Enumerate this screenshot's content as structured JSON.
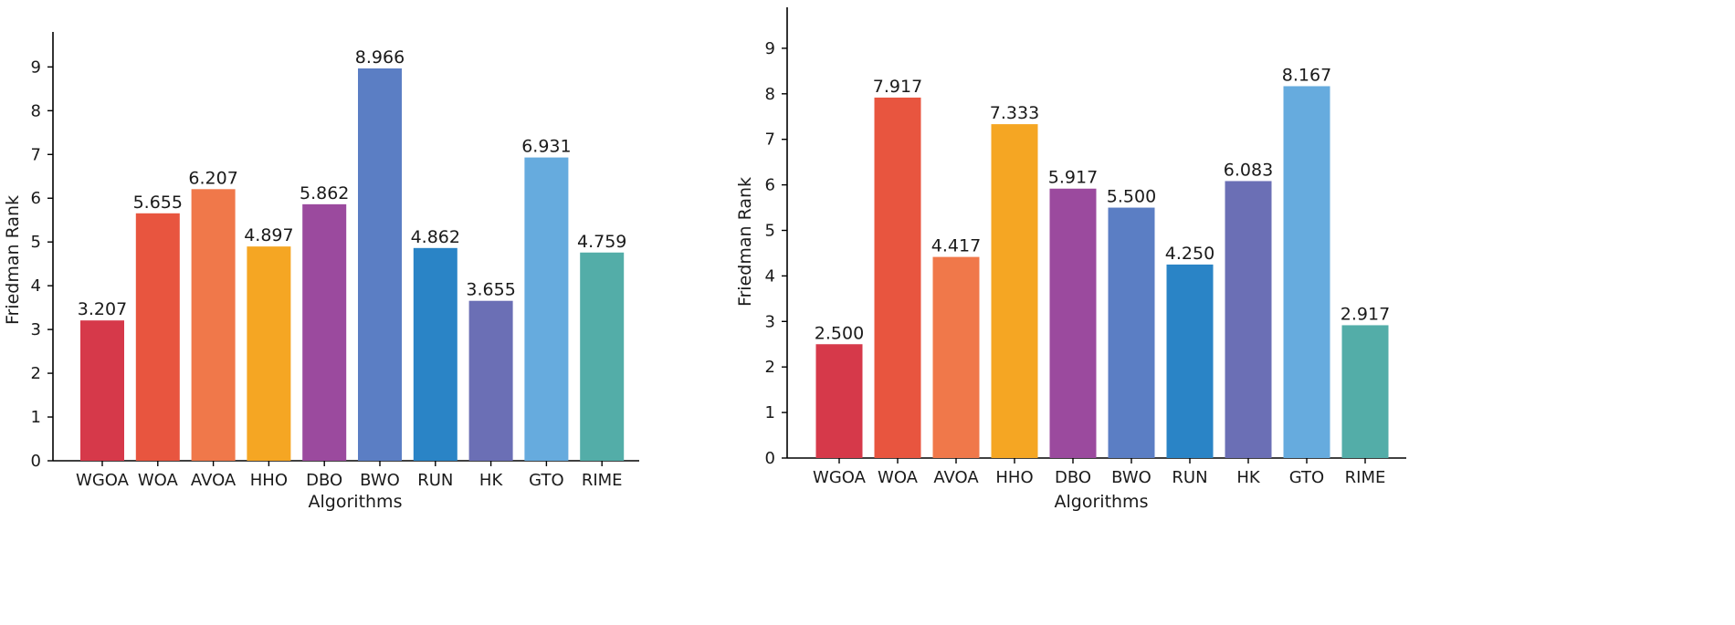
{
  "chart_data": [
    {
      "type": "bar",
      "xlabel": "Algorithms",
      "ylabel": "Friedman Rank",
      "ylim": [
        0,
        9.8
      ],
      "yticks": [
        0,
        1,
        2,
        3,
        4,
        5,
        6,
        7,
        8,
        9
      ],
      "grid": false,
      "categories": [
        "WGOA",
        "WOA",
        "AVOA",
        "HHO",
        "DBO",
        "BWO",
        "RUN",
        "HK",
        "GTO",
        "RIME"
      ],
      "values": [
        3.207,
        5.655,
        6.207,
        4.897,
        5.862,
        8.966,
        4.862,
        3.655,
        6.931,
        4.759
      ],
      "value_labels": [
        "3.207",
        "5.655",
        "6.207",
        "4.897",
        "5.862",
        "8.966",
        "4.862",
        "3.655",
        "6.931",
        "4.759"
      ],
      "colors": [
        "#d6394a",
        "#e8553f",
        "#f0784a",
        "#f5a623",
        "#9b4a9e",
        "#5b7ec4",
        "#2a84c6",
        "#6b6fb5",
        "#66abde",
        "#53ada8"
      ]
    },
    {
      "type": "bar",
      "xlabel": "Algorithms",
      "ylabel": "Friedman Rank",
      "ylim": [
        0,
        9.9
      ],
      "yticks": [
        0,
        1,
        2,
        3,
        4,
        5,
        6,
        7,
        8,
        9
      ],
      "grid": false,
      "categories": [
        "WGOA",
        "WOA",
        "AVOA",
        "HHO",
        "DBO",
        "BWO",
        "RUN",
        "HK",
        "GTO",
        "RIME"
      ],
      "values": [
        2.5,
        7.917,
        4.417,
        7.333,
        5.917,
        5.5,
        4.25,
        6.083,
        8.167,
        2.917
      ],
      "value_labels": [
        "2.500",
        "7.917",
        "4.417",
        "7.333",
        "5.917",
        "5.500",
        "4.250",
        "6.083",
        "8.167",
        "2.917"
      ],
      "colors": [
        "#d6394a",
        "#e8553f",
        "#f0784a",
        "#f5a623",
        "#9b4a9e",
        "#5b7ec4",
        "#2a84c6",
        "#6b6fb5",
        "#66abde",
        "#53ada8"
      ]
    }
  ]
}
